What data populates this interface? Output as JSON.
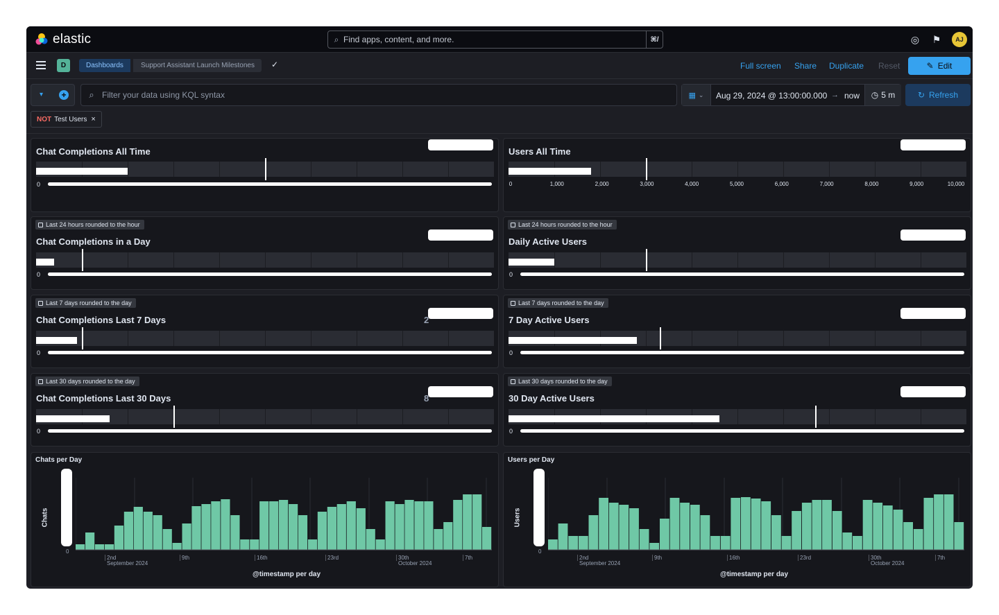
{
  "app": {
    "logo_text": "elastic",
    "search_placeholder": "Find apps, content, and more.",
    "search_shortcut": "⌘/",
    "avatar_initials": "AJ"
  },
  "nav": {
    "space_initial": "D",
    "breadcrumbs": [
      "Dashboards",
      "Support Assistant Launch Milestones"
    ],
    "links": [
      "Full screen",
      "Share",
      "Duplicate",
      "Reset"
    ],
    "edit_label": "Edit"
  },
  "query": {
    "kql_placeholder": "Filter your data using KQL syntax",
    "date_start": "Aug 29, 2024 @ 13:00:00.000",
    "date_end": "now",
    "refresh_interval": "5 m",
    "refresh_label": "Refresh",
    "filter_pill": {
      "negate": "NOT",
      "label": "Test Users"
    }
  },
  "colors": {
    "accent": "#36a2ef",
    "bar": "#6fc8a6",
    "bg": "#1d1e24",
    "panel": "#16171c"
  },
  "panels": [
    {
      "title": "Chat Completions All Time",
      "badge": "",
      "fill_fraction": 0.2,
      "marker_fraction": 0.5,
      "ticks": [],
      "peek": ""
    },
    {
      "title": "Users All Time",
      "badge": "",
      "fill_fraction": 0.18,
      "marker_fraction": 0.3,
      "ticks": [
        "0",
        "1,000",
        "2,000",
        "3,000",
        "4,000",
        "5,000",
        "6,000",
        "7,000",
        "8,000",
        "9,000",
        "10,000"
      ],
      "peek": ""
    },
    {
      "title": "Chat Completions in a Day",
      "badge": "Last 24 hours rounded to the hour",
      "fill_fraction": 0.04,
      "marker_fraction": 0.1,
      "ticks": [],
      "peek": ""
    },
    {
      "title": "Daily Active Users",
      "badge": "Last 24 hours rounded to the hour",
      "fill_fraction": 0.1,
      "marker_fraction": 0.3,
      "ticks": [],
      "peek": ""
    },
    {
      "title": "Chat Completions Last 7 Days",
      "badge": "Last 7 days rounded to the day",
      "fill_fraction": 0.09,
      "marker_fraction": 0.1,
      "ticks": [],
      "peek": "2"
    },
    {
      "title": "7 Day Active Users",
      "badge": "Last 7 days rounded to the day",
      "fill_fraction": 0.28,
      "marker_fraction": 0.33,
      "ticks": [],
      "peek": ""
    },
    {
      "title": "Chat Completions Last 30 Days",
      "badge": "Last 30 days rounded to the day",
      "fill_fraction": 0.16,
      "marker_fraction": 0.3,
      "ticks": [],
      "peek": "8"
    },
    {
      "title": "30 Day Active Users",
      "badge": "Last 30 days rounded to the day",
      "fill_fraction": 0.46,
      "marker_fraction": 0.67,
      "ticks": [],
      "peek": ""
    }
  ],
  "chart_data": [
    {
      "type": "bar",
      "title": "Chats per Day",
      "xlabel": "@timestamp per day",
      "ylabel": "Chats",
      "x_ticks": [
        "2nd",
        "9th",
        "16th",
        "23rd",
        "30th",
        "7th"
      ],
      "x_month_labels": [
        "September 2024",
        "October 2024"
      ],
      "y_tick_zero": "0",
      "values": [
        0.08,
        0.25,
        0.08,
        0.08,
        0.35,
        0.55,
        0.62,
        0.55,
        0.5,
        0.3,
        0.1,
        0.38,
        0.63,
        0.66,
        0.7,
        0.73,
        0.5,
        0.15,
        0.15,
        0.7,
        0.7,
        0.72,
        0.66,
        0.5,
        0.15,
        0.55,
        0.62,
        0.66,
        0.7,
        0.6,
        0.3,
        0.15,
        0.7,
        0.66,
        0.72,
        0.7,
        0.7,
        0.3,
        0.4,
        0.72,
        0.8,
        0.8,
        0.33
      ]
    },
    {
      "type": "bar",
      "title": "Users per Day",
      "xlabel": "@timestamp per day",
      "ylabel": "Users",
      "x_ticks": [
        "2nd",
        "9th",
        "16th",
        "23rd",
        "30th",
        "7th"
      ],
      "x_month_labels": [
        "September 2024",
        "October 2024"
      ],
      "y_tick_zero": "0",
      "values": [
        0.15,
        0.38,
        0.2,
        0.2,
        0.5,
        0.75,
        0.68,
        0.65,
        0.6,
        0.3,
        0.1,
        0.45,
        0.75,
        0.68,
        0.65,
        0.5,
        0.2,
        0.2,
        0.75,
        0.76,
        0.74,
        0.7,
        0.5,
        0.2,
        0.56,
        0.68,
        0.72,
        0.72,
        0.56,
        0.25,
        0.2,
        0.72,
        0.68,
        0.64,
        0.58,
        0.4,
        0.3,
        0.75,
        0.8,
        0.8,
        0.4
      ]
    }
  ]
}
